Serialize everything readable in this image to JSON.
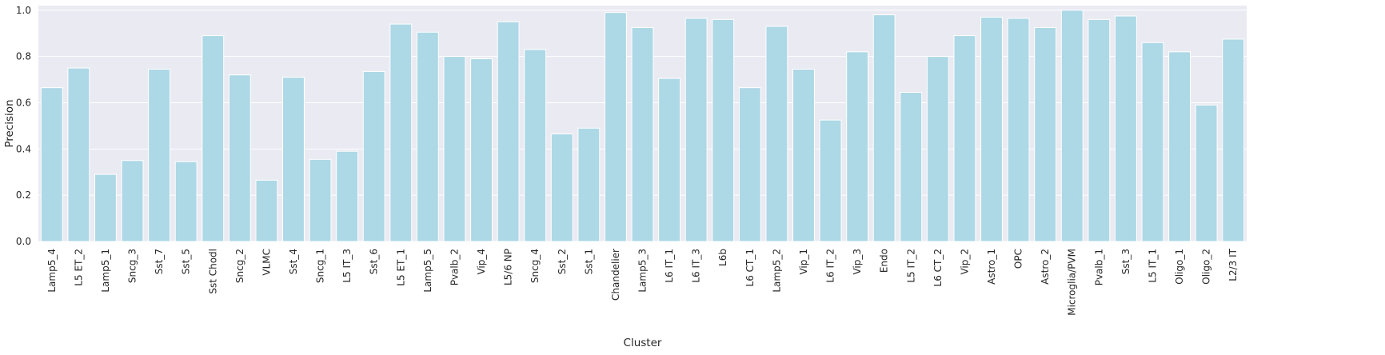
{
  "chart_data": {
    "type": "bar",
    "title": "",
    "xlabel": "Cluster",
    "ylabel": "Precision",
    "ylim": [
      0,
      1.02
    ],
    "yticks": [
      0.0,
      0.2,
      0.4,
      0.6,
      0.8,
      1.0
    ],
    "ytick_labels": [
      "0.0",
      "0.2",
      "0.4",
      "0.6",
      "0.8",
      "1.0"
    ],
    "grid": true,
    "style": "seaborn-darkgrid",
    "bar_color": "#add8e6",
    "background_color": "#eaeaf2",
    "categories": [
      "Lamp5_4",
      "L5 ET_2",
      "Lamp5_1",
      "Sncg_3",
      "Sst_7",
      "Sst_5",
      "Sst Chodl",
      "Sncg_2",
      "VLMC",
      "Sst_4",
      "Sncg_1",
      "L5 IT_3",
      "Sst_6",
      "L5 ET_1",
      "Lamp5_5",
      "Pvalb_2",
      "Vip_4",
      "L5/6 NP",
      "Sncg_4",
      "Sst_2",
      "Sst_1",
      "Chandelier",
      "Lamp5_3",
      "L6 IT_1",
      "L6 IT_3",
      "L6b",
      "L6 CT_1",
      "Lamp5_2",
      "Vip_1",
      "L6 IT_2",
      "Vip_3",
      "Endo",
      "L5 IT_2",
      "L6 CT_2",
      "Vip_2",
      "Astro_1",
      "OPC",
      "Astro_2",
      "Microglia/PVM",
      "Pvalb_1",
      "Sst_3",
      "L5 IT_1",
      "Oligo_1",
      "Oligo_2",
      "L2/3 IT"
    ],
    "values": [
      0.665,
      0.75,
      0.29,
      0.35,
      0.745,
      0.345,
      0.89,
      0.72,
      0.265,
      0.71,
      0.355,
      0.39,
      0.735,
      0.94,
      0.905,
      0.8,
      0.79,
      0.95,
      0.83,
      0.465,
      0.49,
      0.99,
      0.925,
      0.705,
      0.965,
      0.96,
      0.665,
      0.93,
      0.745,
      0.525,
      0.82,
      0.98,
      0.645,
      0.8,
      0.89,
      0.97,
      0.965,
      0.925,
      1.0,
      0.96,
      0.975,
      0.86,
      0.82,
      0.59,
      0.875
    ]
  }
}
